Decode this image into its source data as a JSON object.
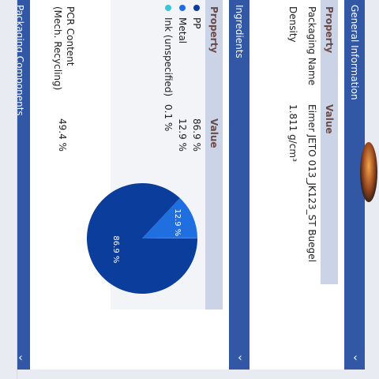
{
  "sections": {
    "general": {
      "label": "General Information",
      "chevron": "›"
    },
    "ingredients": {
      "label": "Ingredients",
      "chevron": "›"
    },
    "packaging": {
      "label": "Packaging Components",
      "chevron": "›"
    }
  },
  "general_table": {
    "header": {
      "property": "Property",
      "value": "Value"
    },
    "rows": [
      {
        "property": "Packaging Name",
        "value": "Eimer JETO 013_JK123_ST Buegel"
      },
      {
        "property": "Density",
        "value": "1.811 g/cm³"
      }
    ]
  },
  "ingredients_table": {
    "header": {
      "property": "Property",
      "value": "Value"
    },
    "rows": [
      {
        "property": "PP",
        "value": "86.9 %",
        "color": "#0a3d9c"
      },
      {
        "property": "Metal",
        "value": "12.9 %",
        "color": "#1f6fe0"
      },
      {
        "property": "Ink (unspecified)",
        "value": "0.1 %",
        "color": "#38c6d6"
      }
    ],
    "pcr_label": "PCR Content",
    "pcr_sub": "(Mech. Recycling)",
    "pcr_value": "49.4 %"
  },
  "chart_data": {
    "type": "pie",
    "categories": [
      "PP",
      "Metal",
      "Ink (unspecified)"
    ],
    "values": [
      86.9,
      12.9,
      0.1
    ],
    "labels": [
      "86.9 %",
      "12.9 %",
      ""
    ],
    "colors": [
      "#0a3d9c",
      "#1f6fe0",
      "#38c6d6"
    ],
    "title": ""
  }
}
